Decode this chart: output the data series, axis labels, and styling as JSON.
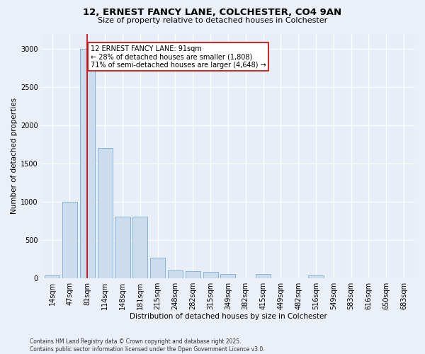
{
  "title_line1": "12, ERNEST FANCY LANE, COLCHESTER, CO4 9AN",
  "title_line2": "Size of property relative to detached houses in Colchester",
  "xlabel": "Distribution of detached houses by size in Colchester",
  "ylabel": "Number of detached properties",
  "categories": [
    "14sqm",
    "47sqm",
    "81sqm",
    "114sqm",
    "148sqm",
    "181sqm",
    "215sqm",
    "248sqm",
    "282sqm",
    "315sqm",
    "349sqm",
    "382sqm",
    "415sqm",
    "449sqm",
    "482sqm",
    "516sqm",
    "549sqm",
    "583sqm",
    "616sqm",
    "650sqm",
    "683sqm"
  ],
  "values": [
    30,
    1000,
    3000,
    1700,
    800,
    800,
    270,
    100,
    90,
    80,
    50,
    0,
    50,
    0,
    0,
    30,
    0,
    0,
    0,
    0,
    0
  ],
  "bar_color": "#ccdcef",
  "bar_edge_color": "#7aabd4",
  "vline_x_index": 2,
  "vline_color": "#cc0000",
  "annotation_text": "12 ERNEST FANCY LANE: 91sqm\n← 28% of detached houses are smaller (1,808)\n71% of semi-detached houses are larger (4,648) →",
  "annotation_box_facecolor": "#ffffff",
  "annotation_box_edgecolor": "#cc0000",
  "ylim": [
    0,
    3200
  ],
  "yticks": [
    0,
    500,
    1000,
    1500,
    2000,
    2500,
    3000
  ],
  "plot_bg_color": "#e8eef8",
  "fig_bg_color": "#eaeff8",
  "grid_color": "#ffffff",
  "footer_line1": "Contains HM Land Registry data © Crown copyright and database right 2025.",
  "footer_line2": "Contains public sector information licensed under the Open Government Licence v3.0.",
  "title1_fontsize": 9.5,
  "title2_fontsize": 8,
  "tick_fontsize": 7,
  "ylabel_fontsize": 7.5,
  "xlabel_fontsize": 7.5,
  "annot_fontsize": 7,
  "footer_fontsize": 5.5
}
